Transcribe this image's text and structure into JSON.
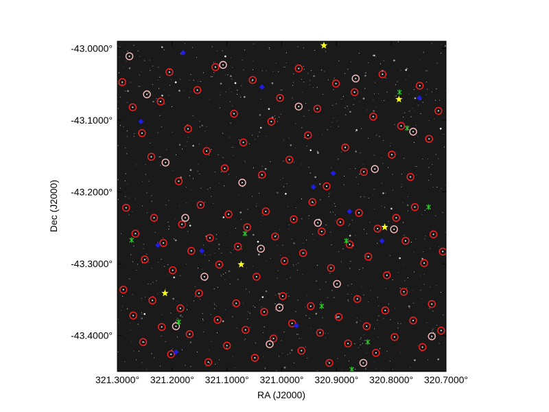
{
  "chart_data": {
    "type": "scatter",
    "xlabel": "RA (J2000)",
    "ylabel": "Dec (J2000)",
    "xlim": [
      321.3,
      320.7
    ],
    "ylim": [
      -43.45,
      -42.99
    ],
    "x_axis_reversed": true,
    "x_ticks": [
      321.3,
      321.2,
      321.1,
      321.0,
      320.9,
      320.8,
      320.7
    ],
    "x_tick_labels": [
      "321.3000°",
      "321.2000°",
      "321.1000°",
      "321.0000°",
      "320.9000°",
      "320.8000°",
      "320.7000°"
    ],
    "y_ticks": [
      -43.0,
      -43.1,
      -43.2,
      -43.3,
      -43.4
    ],
    "y_tick_labels": [
      "-43.0000°",
      "-43.1000°",
      "-43.2000°",
      "-43.3000°",
      "-43.4000°"
    ],
    "background": "star field image (greyscale)",
    "grid": false,
    "series": [
      {
        "marker": "circle",
        "color": "#ff2020",
        "points": [
          [
            321.291,
            -43.047
          ],
          [
            321.272,
            -43.082
          ],
          [
            321.255,
            -43.118
          ],
          [
            321.238,
            -43.151
          ],
          [
            321.221,
            -43.074
          ],
          [
            321.205,
            -43.033
          ],
          [
            321.188,
            -43.185
          ],
          [
            321.171,
            -43.112
          ],
          [
            321.154,
            -43.058
          ],
          [
            321.137,
            -43.143
          ],
          [
            321.121,
            -43.026
          ],
          [
            321.104,
            -43.167
          ],
          [
            321.087,
            -43.091
          ],
          [
            321.07,
            -43.131
          ],
          [
            321.053,
            -43.044
          ],
          [
            321.036,
            -43.176
          ],
          [
            321.019,
            -43.102
          ],
          [
            321.003,
            -43.069
          ],
          [
            320.986,
            -43.155
          ],
          [
            320.969,
            -43.028
          ],
          [
            320.952,
            -43.121
          ],
          [
            320.935,
            -43.084
          ],
          [
            320.918,
            -43.192
          ],
          [
            320.901,
            -43.049
          ],
          [
            320.884,
            -43.138
          ],
          [
            320.867,
            -43.061
          ],
          [
            320.85,
            -43.172
          ],
          [
            320.833,
            -43.095
          ],
          [
            320.816,
            -43.036
          ],
          [
            320.799,
            -43.148
          ],
          [
            320.782,
            -43.108
          ],
          [
            320.765,
            -43.179
          ],
          [
            320.748,
            -43.052
          ],
          [
            320.731,
            -43.126
          ],
          [
            320.714,
            -43.087
          ],
          [
            321.284,
            -43.222
          ],
          [
            321.267,
            -43.258
          ],
          [
            321.25,
            -43.294
          ],
          [
            321.233,
            -43.236
          ],
          [
            321.216,
            -43.271
          ],
          [
            321.199,
            -43.309
          ],
          [
            321.182,
            -43.245
          ],
          [
            321.165,
            -43.282
          ],
          [
            321.148,
            -43.218
          ],
          [
            321.131,
            -43.264
          ],
          [
            321.114,
            -43.301
          ],
          [
            321.097,
            -43.231
          ],
          [
            321.08,
            -43.276
          ],
          [
            321.063,
            -43.249
          ],
          [
            321.046,
            -43.318
          ],
          [
            321.029,
            -43.227
          ],
          [
            321.012,
            -43.262
          ],
          [
            320.995,
            -43.296
          ],
          [
            320.978,
            -43.238
          ],
          [
            320.961,
            -43.285
          ],
          [
            320.944,
            -43.214
          ],
          [
            320.927,
            -43.255
          ],
          [
            320.91,
            -43.306
          ],
          [
            320.893,
            -43.242
          ],
          [
            320.876,
            -43.273
          ],
          [
            320.859,
            -43.229
          ],
          [
            320.842,
            -43.29
          ],
          [
            320.825,
            -43.251
          ],
          [
            320.808,
            -43.316
          ],
          [
            320.791,
            -43.236
          ],
          [
            320.774,
            -43.268
          ],
          [
            320.757,
            -43.221
          ],
          [
            320.74,
            -43.299
          ],
          [
            320.723,
            -43.259
          ],
          [
            320.706,
            -43.283
          ],
          [
            321.289,
            -43.336
          ],
          [
            321.271,
            -43.372
          ],
          [
            321.253,
            -43.409
          ],
          [
            321.236,
            -43.351
          ],
          [
            321.219,
            -43.388
          ],
          [
            321.202,
            -43.426
          ],
          [
            321.185,
            -43.362
          ],
          [
            321.168,
            -43.398
          ],
          [
            321.151,
            -43.341
          ],
          [
            321.134,
            -43.437
          ],
          [
            321.117,
            -43.378
          ],
          [
            321.1,
            -43.414
          ],
          [
            321.083,
            -43.355
          ],
          [
            321.066,
            -43.392
          ],
          [
            321.049,
            -43.431
          ],
          [
            321.032,
            -43.367
          ],
          [
            321.015,
            -43.404
          ],
          [
            320.998,
            -43.345
          ],
          [
            320.981,
            -43.383
          ],
          [
            320.964,
            -43.421
          ],
          [
            320.947,
            -43.359
          ],
          [
            320.93,
            -43.396
          ],
          [
            320.913,
            -43.438
          ],
          [
            320.896,
            -43.374
          ],
          [
            320.879,
            -43.411
          ],
          [
            320.862,
            -43.349
          ],
          [
            320.845,
            -43.387
          ],
          [
            320.828,
            -43.424
          ],
          [
            320.811,
            -43.365
          ],
          [
            320.794,
            -43.402
          ],
          [
            320.777,
            -43.339
          ],
          [
            320.76,
            -43.379
          ],
          [
            320.743,
            -43.416
          ],
          [
            320.726,
            -43.356
          ],
          [
            320.709,
            -43.393
          ]
        ]
      },
      {
        "marker": "circle",
        "color": "#ffc0c0",
        "points": [
          [
            321.278,
            -43.011
          ],
          [
            321.246,
            -43.064
          ],
          [
            321.212,
            -43.159
          ],
          [
            321.176,
            -43.236
          ],
          [
            321.141,
            -43.318
          ],
          [
            321.107,
            -43.023
          ],
          [
            321.072,
            -43.187
          ],
          [
            321.038,
            -43.279
          ],
          [
            321.004,
            -43.361
          ],
          [
            320.969,
            -43.081
          ],
          [
            320.934,
            -43.243
          ],
          [
            320.899,
            -43.328
          ],
          [
            320.865,
            -43.042
          ],
          [
            320.83,
            -43.168
          ],
          [
            320.795,
            -43.252
          ],
          [
            320.76,
            -43.116
          ],
          [
            320.726,
            -43.401
          ],
          [
            321.193,
            -43.387
          ],
          [
            321.022,
            -43.412
          ],
          [
            320.851,
            -43.438
          ]
        ]
      },
      {
        "marker": "diamond",
        "color": "#1e1ee6",
        "points": [
          [
            321.257,
            -43.102
          ],
          [
            321.226,
            -43.274
          ],
          [
            321.18,
            -43.006
          ],
          [
            321.146,
            -43.282
          ],
          [
            320.942,
            -43.193
          ],
          [
            320.906,
            -43.174
          ],
          [
            320.817,
            -43.268
          ],
          [
            320.749,
            -43.069
          ],
          [
            321.193,
            -43.423
          ],
          [
            320.973,
            -43.386
          ],
          [
            321.036,
            -43.054
          ],
          [
            320.876,
            -43.227
          ]
        ]
      },
      {
        "marker": "cross",
        "color": "#2bd12b",
        "points": [
          [
            321.274,
            -43.267
          ],
          [
            321.188,
            -43.381
          ],
          [
            320.882,
            -43.268
          ],
          [
            320.785,
            -43.061
          ],
          [
            320.732,
            -43.221
          ],
          [
            320.872,
            -43.447
          ],
          [
            321.067,
            -43.258
          ],
          [
            320.927,
            -43.359
          ],
          [
            320.843,
            -43.409
          ],
          [
            320.771,
            -43.111
          ]
        ]
      },
      {
        "marker": "star",
        "color": "#ffff20",
        "points": [
          [
            320.923,
            -42.996
          ],
          [
            320.786,
            -43.071
          ],
          [
            320.812,
            -43.249
          ],
          [
            321.074,
            -43.301
          ],
          [
            321.213,
            -43.341
          ]
        ]
      }
    ]
  }
}
